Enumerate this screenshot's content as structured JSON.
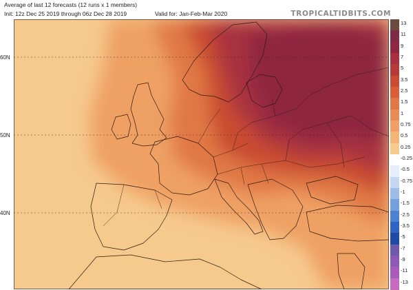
{
  "header": {
    "line1": "Average of last 12 forecasts (12 runs x 1 members)",
    "line2": "Init: 12z Dec 25 2019 through 06z Dec 28 2019",
    "valid": "Valid for: Jan-Feb-Mar 2020",
    "brand": "TROPICALTIDBITS.COM"
  },
  "map": {
    "lat_labels": [
      "60N",
      "50N",
      "40N"
    ],
    "colors": {
      "light": "#f6c98d",
      "mid": "#efa064",
      "warm": "#e07845",
      "hot": "#c94b33",
      "hotter": "#a83040",
      "hottest": "#8e2740",
      "border": "#2b1a14"
    }
  },
  "colorbar": {
    "items": [
      {
        "label": "13",
        "color": "#6b4a40"
      },
      {
        "label": "11",
        "color": "#7e2c44"
      },
      {
        "label": "9",
        "color": "#8e2740"
      },
      {
        "label": "7",
        "color": "#a83040"
      },
      {
        "label": "5",
        "color": "#b73a3a"
      },
      {
        "label": "3.5",
        "color": "#c94b33"
      },
      {
        "label": "2.5",
        "color": "#d85f38"
      },
      {
        "label": "1.5",
        "color": "#e07845"
      },
      {
        "label": "1",
        "color": "#e98c55"
      },
      {
        "label": "0.75",
        "color": "#efa064"
      },
      {
        "label": "0.5",
        "color": "#f3b478"
      },
      {
        "label": "0.25",
        "color": "#f6c98d"
      },
      {
        "label": "-0.25",
        "color": "#ffffff"
      },
      {
        "label": "-0.5",
        "color": "#e6eefb"
      },
      {
        "label": "-0.75",
        "color": "#c5d6f3"
      },
      {
        "label": "-1",
        "color": "#9fbce9"
      },
      {
        "label": "-1.5",
        "color": "#74a0de"
      },
      {
        "label": "-2.5",
        "color": "#4d82d2"
      },
      {
        "label": "-3.5",
        "color": "#2f64c2"
      },
      {
        "label": "-5",
        "color": "#204aa6"
      },
      {
        "label": "-7",
        "color": "#6e5aa8"
      },
      {
        "label": "-9",
        "color": "#8c5ab4"
      },
      {
        "label": "-11",
        "color": "#a85cb8"
      },
      {
        "label": "-13",
        "color": "#c76bc0"
      }
    ]
  }
}
